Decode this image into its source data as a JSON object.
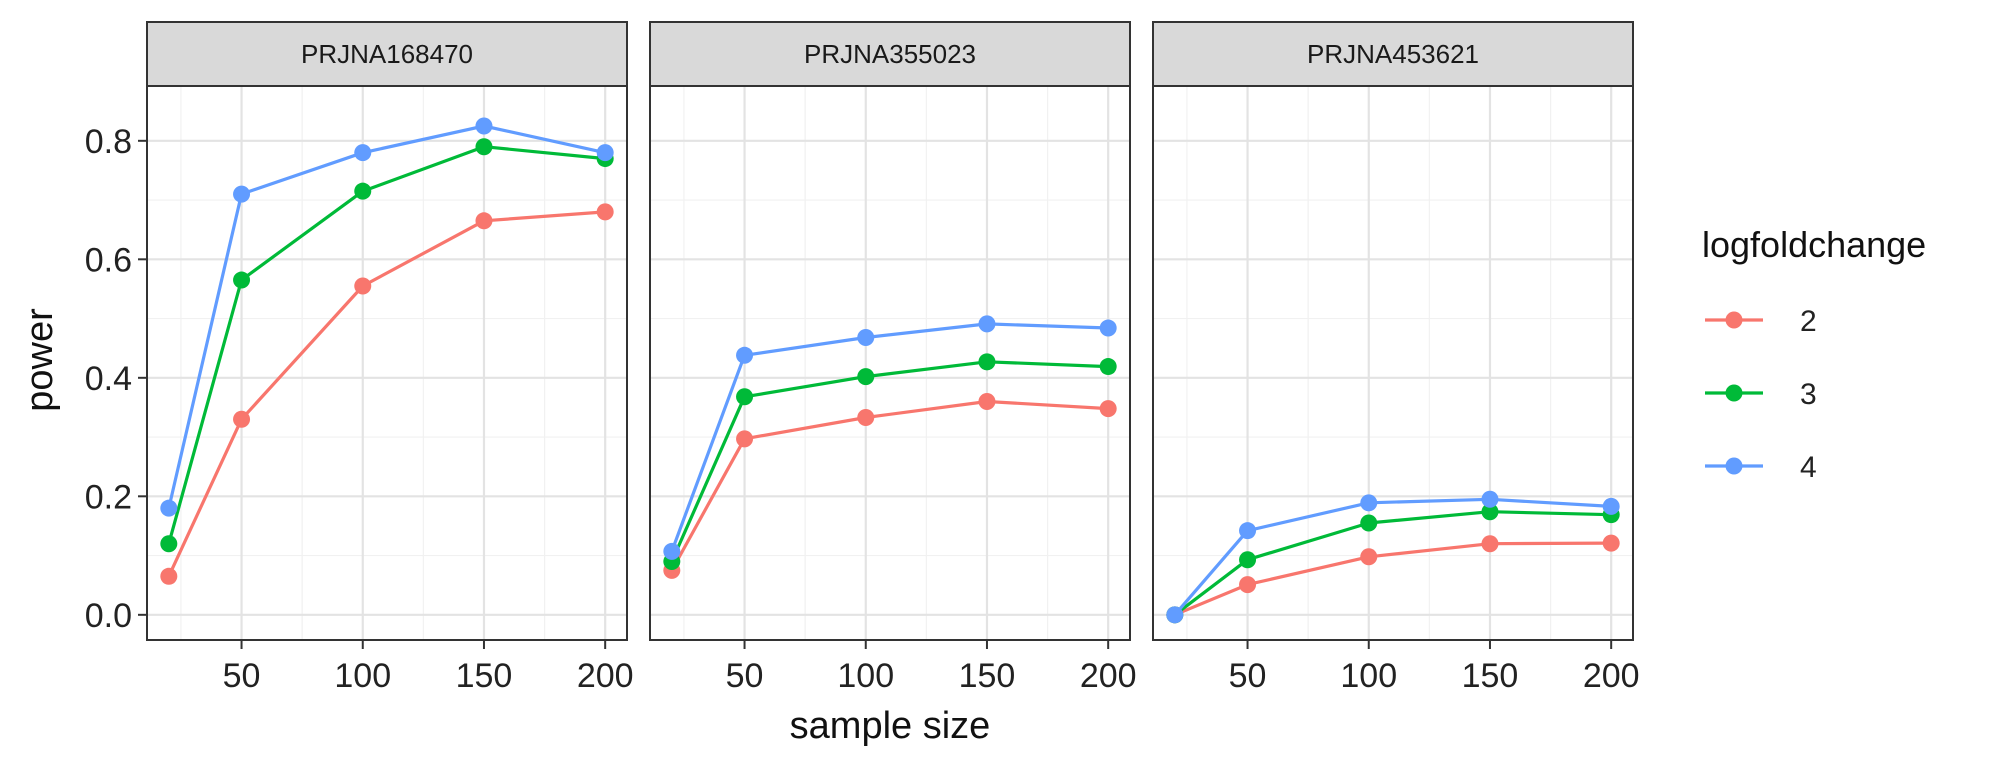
{
  "chart_data": {
    "type": "line",
    "facet_variable": "project",
    "xlabel": "sample size",
    "ylabel": "power",
    "x_ticks": [
      50,
      100,
      150,
      200
    ],
    "y_ticks": [
      0.0,
      0.2,
      0.4,
      0.6,
      0.8
    ],
    "y_tick_labels": [
      "0.0",
      "0.2",
      "0.4",
      "0.6",
      "0.8"
    ],
    "xlim": [
      20,
      200
    ],
    "ylim": [
      0,
      0.85
    ],
    "grid": true,
    "legend": {
      "title": "logfoldchange",
      "placement": "right",
      "entries": [
        {
          "label": "2",
          "color": "#F8766D"
        },
        {
          "label": "3",
          "color": "#00BA38"
        },
        {
          "label": "4",
          "color": "#619CFF"
        }
      ]
    },
    "x": [
      20,
      50,
      100,
      150,
      200
    ],
    "panels": [
      {
        "title": "PRJNA168470",
        "series": [
          {
            "name": "2",
            "color": "#F8766D",
            "values": [
              0.065,
              0.33,
              0.555,
              0.665,
              0.68
            ]
          },
          {
            "name": "3",
            "color": "#00BA38",
            "values": [
              0.12,
              0.565,
              0.715,
              0.79,
              0.77
            ]
          },
          {
            "name": "4",
            "color": "#619CFF",
            "values": [
              0.18,
              0.71,
              0.78,
              0.825,
              0.78
            ]
          }
        ]
      },
      {
        "title": "PRJNA355023",
        "series": [
          {
            "name": "2",
            "color": "#F8766D",
            "values": [
              0.075,
              0.297,
              0.333,
              0.36,
              0.348
            ]
          },
          {
            "name": "3",
            "color": "#00BA38",
            "values": [
              0.09,
              0.368,
              0.402,
              0.427,
              0.419
            ]
          },
          {
            "name": "4",
            "color": "#619CFF",
            "values": [
              0.107,
              0.438,
              0.468,
              0.491,
              0.484
            ]
          }
        ]
      },
      {
        "title": "PRJNA453621",
        "series": [
          {
            "name": "2",
            "color": "#F8766D",
            "values": [
              0.0,
              0.051,
              0.098,
              0.12,
              0.121
            ]
          },
          {
            "name": "3",
            "color": "#00BA38",
            "values": [
              0.0,
              0.093,
              0.155,
              0.174,
              0.169
            ]
          },
          {
            "name": "4",
            "color": "#619CFF",
            "values": [
              0.0,
              0.142,
              0.189,
              0.195,
              0.183
            ]
          }
        ]
      }
    ]
  }
}
